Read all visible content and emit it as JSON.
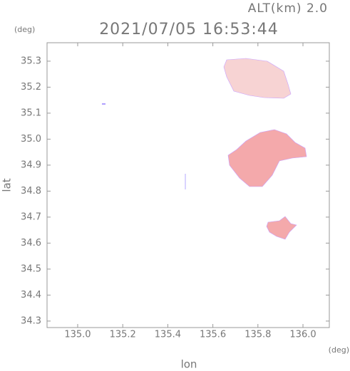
{
  "chart_data": {
    "type": "map",
    "title": "2021/07/05 16:53:44",
    "altitude_label": "ALT(km) 2.0",
    "y_unit": "(deg)",
    "x_unit": "(deg)",
    "x_label": "lon",
    "y_label": "lat",
    "xlim": [
      134.864,
      136.117
    ],
    "ylim": [
      34.275,
      35.371
    ],
    "xticks": [
      {
        "value": 135,
        "label": "135.0"
      },
      135.2,
      135.4,
      135.6,
      135.8,
      {
        "value": 136,
        "label": "136.0"
      }
    ],
    "yticks": [
      34.3,
      34.4,
      34.5,
      34.6,
      34.7,
      34.8,
      34.9,
      {
        "value": 35,
        "label": "35.0"
      },
      35.1,
      35.2,
      35.3
    ]
  }
}
